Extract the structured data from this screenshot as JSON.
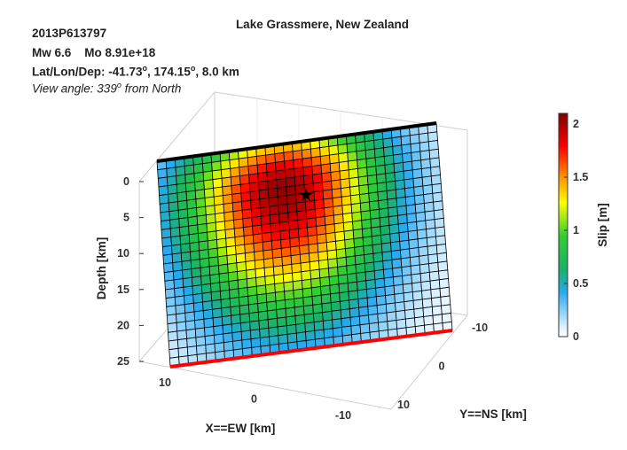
{
  "header": {
    "title": "Lake Grassmere, New Zealand",
    "event_id": "2013P613797",
    "magnitude": "Mw 6.6",
    "moment": "Mo 8.91e+18",
    "location_prefix": "Lat/Lon/Dep: -41.73",
    "location_lon": ", 174.15",
    "location_dep": ", 8.0 km",
    "degree_symbol": "o",
    "view_prefix": "View angle: 339",
    "view_suffix": " from North"
  },
  "chart_data": {
    "type": "heatmap",
    "title": "Lake Grassmere, New Zealand",
    "zlabel": "Depth [km]",
    "xlabel": "X==EW [km]",
    "ylabel": "Y==NS [km]",
    "colorbar_label": "Slip [m]",
    "depth_ticks": [
      "0",
      "5",
      "10",
      "15",
      "20",
      "25"
    ],
    "ew_ticks": [
      "10",
      "0",
      "-10"
    ],
    "ns_ticks": [
      "-10",
      "0",
      "10"
    ],
    "colorbar_ticks": [
      "0",
      "0.5",
      "1",
      "1.5",
      "2"
    ],
    "slip_range": [
      0,
      2.1
    ],
    "peak_slip": 2.05,
    "colormap": "jet",
    "grid_columns": 31,
    "grid_rows": 24,
    "peak_position": {
      "along_strike_fraction": 0.44,
      "down_dip_fraction": 0.22
    },
    "colors": {
      "top_edge": "#000000",
      "bottom_edge": "#ff0000",
      "hypocenter_star": "#000000"
    }
  }
}
